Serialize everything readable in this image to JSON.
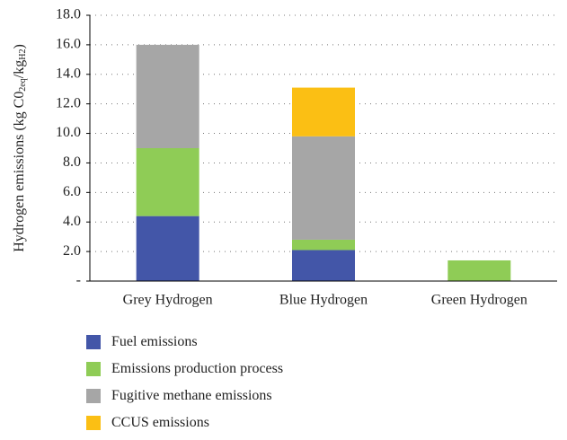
{
  "chart_data": {
    "type": "stacked_bar",
    "ylabel": [
      "Hydrogen emissions (kg C0",
      "2eq",
      "/kg",
      "H2",
      ")"
    ],
    "categories": [
      "Grey Hydrogen",
      "Blue Hydrogen",
      "Green Hydrogen"
    ],
    "series": [
      {
        "name": "Fuel emissions",
        "color": "#4356a8",
        "values": [
          4.4,
          2.1,
          0
        ]
      },
      {
        "name": "Emissions production process",
        "color": "#8fcc56",
        "values": [
          4.6,
          0.7,
          1.4
        ]
      },
      {
        "name": "Fugitive methane emissions",
        "color": "#a6a6a6",
        "values": [
          7.0,
          7.0,
          0
        ]
      },
      {
        "name": "CCUS emissions",
        "color": "#fbbf14",
        "values": [
          0,
          3.3,
          0
        ]
      }
    ],
    "ylim": [
      0,
      18
    ],
    "yticks": [
      {
        "value": 0,
        "label": "-"
      },
      {
        "value": 2,
        "label": "2.0"
      },
      {
        "value": 4,
        "label": "4.0"
      },
      {
        "value": 6,
        "label": "6.0"
      },
      {
        "value": 8,
        "label": "8.0"
      },
      {
        "value": 10,
        "label": "10.0"
      },
      {
        "value": 12,
        "label": "12.0"
      },
      {
        "value": 14,
        "label": "14.0"
      },
      {
        "value": 16,
        "label": "16.0"
      },
      {
        "value": 18,
        "label": "18.0"
      }
    ],
    "grid": true
  }
}
